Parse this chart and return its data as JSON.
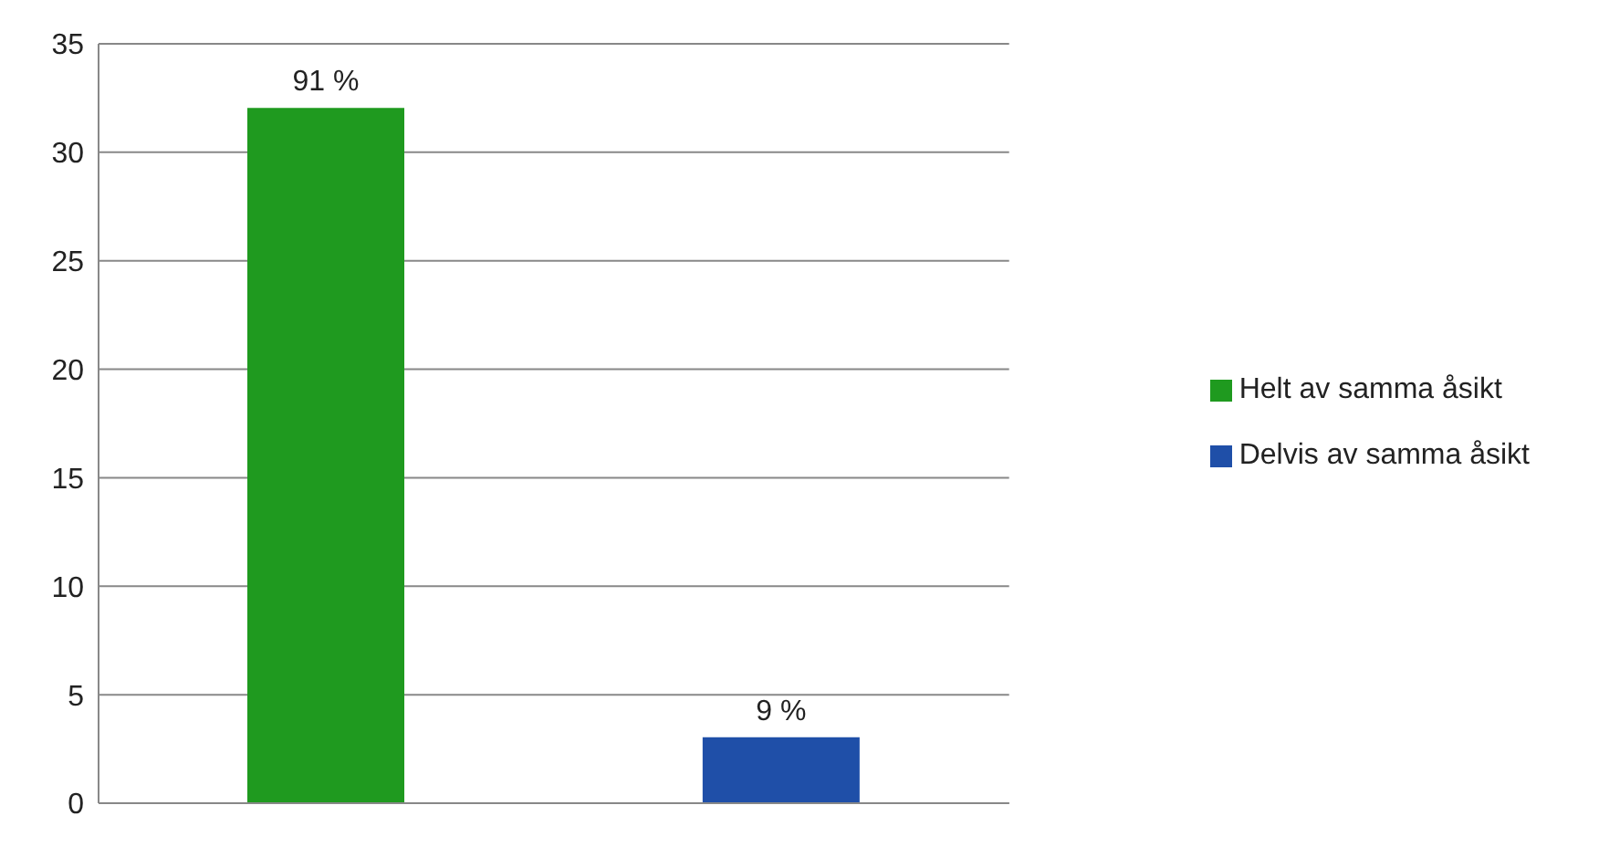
{
  "chart_data": {
    "type": "bar",
    "categories": [
      null,
      null
    ],
    "series": [
      {
        "name": "Helt av samma åsikt",
        "color": "#1f9a1f",
        "values": [
          32,
          null
        ]
      },
      {
        "name": "Delvis av samma åsikt",
        "color": "#1f4fa8",
        "values": [
          null,
          3
        ]
      }
    ],
    "annotations": [
      {
        "text": "91 %",
        "y": 32
      },
      {
        "text": "9 %",
        "y": 3
      }
    ],
    "ylim": [
      0,
      35
    ],
    "yticks": [
      0,
      5,
      10,
      15,
      20,
      25,
      30,
      35
    ],
    "grid": "y",
    "legend": "right"
  }
}
